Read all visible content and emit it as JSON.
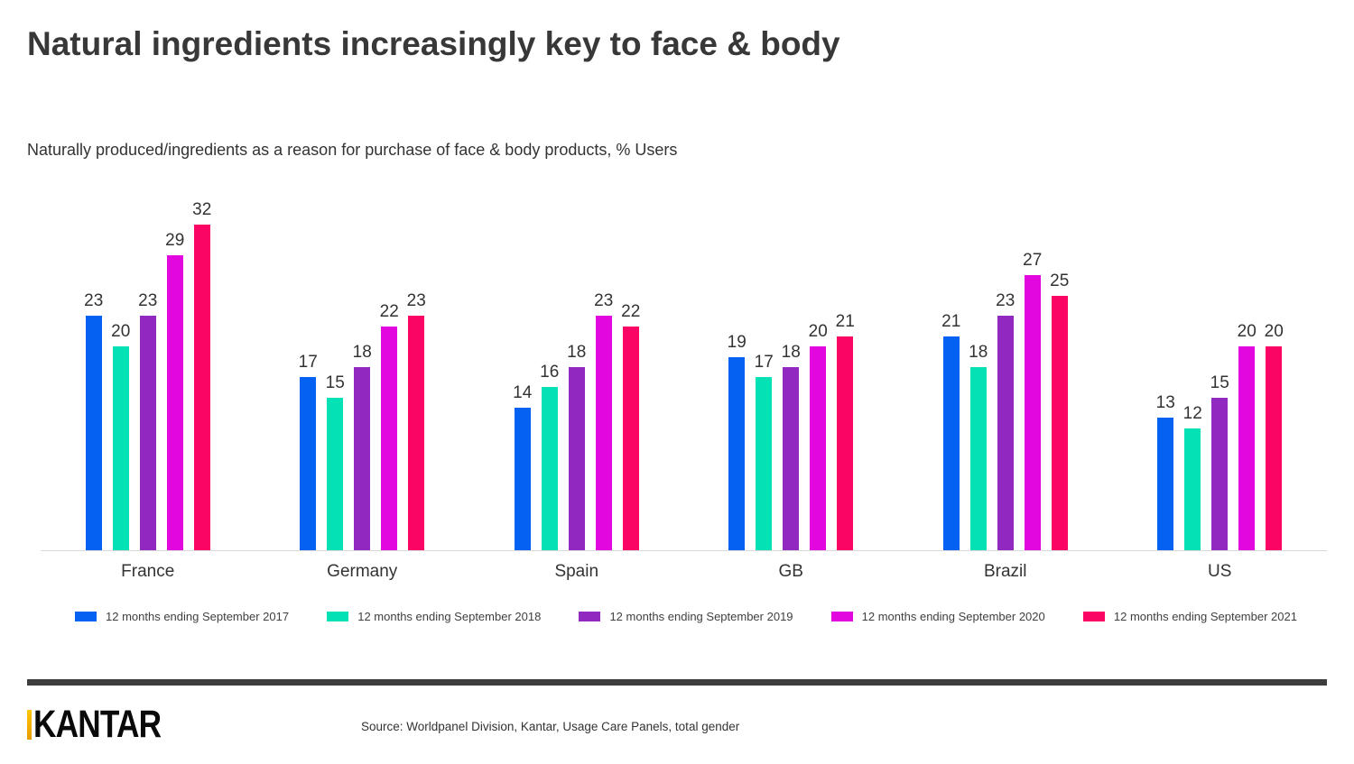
{
  "header": {
    "title": "Natural ingredients increasingly key to face & body",
    "subtitle": "Naturally produced/ingredients as a reason for purchase of face & body products, % Users"
  },
  "chart_data": {
    "type": "bar",
    "categories": [
      "France",
      "Germany",
      "Spain",
      "GB",
      "Brazil",
      "US"
    ],
    "series": [
      {
        "name": "12 months ending September 2017",
        "color": "#0561f2",
        "values": [
          23,
          17,
          14,
          19,
          21,
          13
        ]
      },
      {
        "name": "12 months ending September 2018",
        "color": "#03e1b5",
        "values": [
          20,
          15,
          16,
          17,
          18,
          12
        ]
      },
      {
        "name": "12 months ending September 2019",
        "color": "#9129c0",
        "values": [
          23,
          18,
          18,
          18,
          23,
          15
        ]
      },
      {
        "name": "12 months ending September 2020",
        "color": "#e207df",
        "values": [
          29,
          22,
          23,
          20,
          27,
          20
        ]
      },
      {
        "name": "12 months ending September 2021",
        "color": "#fa0563",
        "values": [
          32,
          23,
          22,
          21,
          25,
          20
        ]
      }
    ],
    "ylim": [
      0,
      35
    ],
    "grid": false,
    "data_labels": true,
    "legend_position": "bottom",
    "axis_line_color": "#d9d9d9"
  },
  "footer": {
    "logo_text": "KANTAR",
    "source": "Source: Worldpanel Division, Kantar, Usage Care Panels, total gender"
  }
}
